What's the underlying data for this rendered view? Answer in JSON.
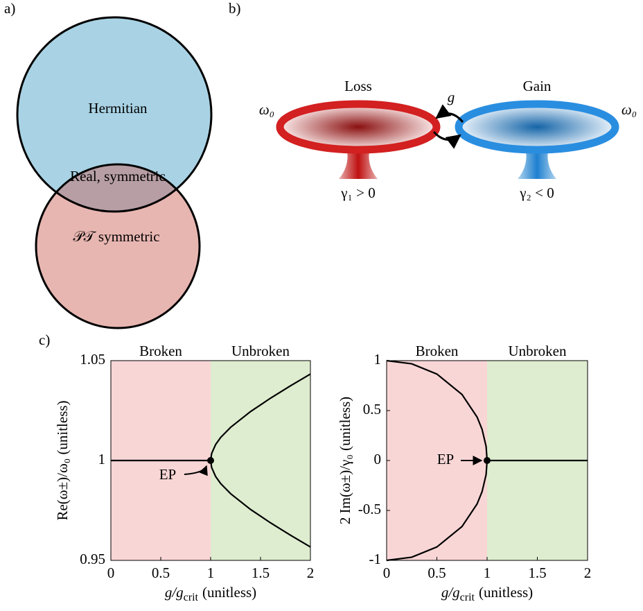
{
  "panel_a": {
    "label": "a)",
    "sets": [
      "Hermitian",
      "𝒫𝒯 symmetric"
    ],
    "overlap": "Real, symmetric"
  },
  "panel_b": {
    "label": "b)",
    "left": {
      "title": "Loss",
      "frequency": "ω₀",
      "rate": "γ₁ > 0"
    },
    "right": {
      "title": "Gain",
      "frequency": "ω₀",
      "rate": "γ₂ < 0"
    },
    "coupling": "g"
  },
  "panel_c": {
    "label": "c)"
  },
  "chart_data": [
    {
      "type": "line",
      "ylabel": "Re(ω±)/ω₀ (unitless)",
      "xlabel": {
        "main": "g/g",
        "sub": "crit",
        "unit": "(unitless)"
      },
      "x": [
        0,
        0.25,
        0.5,
        0.75,
        0.9,
        0.95,
        0.99,
        1,
        1.01,
        1.05,
        1.1,
        1.2,
        1.4,
        1.6,
        1.8,
        2
      ],
      "series": [
        {
          "color": "#000000",
          "values": [
            1,
            1,
            1,
            1,
            1,
            1,
            1,
            1,
            1.0035,
            1.008,
            1.0115,
            1.0166,
            1.0245,
            1.0312,
            1.0374,
            1.0433
          ]
        },
        {
          "color": "#000000",
          "values": [
            null,
            null,
            null,
            null,
            null,
            null,
            null,
            1,
            0.9965,
            0.992,
            0.9885,
            0.9834,
            0.9755,
            0.9688,
            0.9626,
            0.9567
          ]
        }
      ],
      "regions": [
        {
          "label": "Broken",
          "range": [
            0,
            1
          ],
          "color": "#f9d6d6"
        },
        {
          "label": "Unbroken",
          "range": [
            1,
            2
          ],
          "color": "#deedcf"
        }
      ],
      "annotations": [
        {
          "text": "EP",
          "x": 1,
          "y": 1
        }
      ],
      "xlim": [
        0,
        2
      ],
      "xticks": [
        0,
        0.5,
        1,
        1.5,
        2
      ],
      "ylim": [
        0.95,
        1.05
      ],
      "yticks": [
        0.95,
        1,
        1.05
      ]
    },
    {
      "type": "line",
      "ylabel": "2 Im(ω±)/γ₀ (unitless)",
      "xlabel": {
        "main": "g/g",
        "sub": "crit",
        "unit": "(unitless)"
      },
      "x": [
        0,
        0.25,
        0.5,
        0.75,
        0.9,
        0.95,
        0.99,
        1,
        1.01,
        1.05,
        1.1,
        1.2,
        1.4,
        1.6,
        1.8,
        2
      ],
      "series": [
        {
          "color": "#000000",
          "values": [
            1,
            0.9682,
            0.866,
            0.6614,
            0.4359,
            0.3122,
            0.1411,
            0,
            0,
            0,
            0,
            0,
            0,
            0,
            0,
            0
          ]
        },
        {
          "color": "#000000",
          "values": [
            -1,
            -0.9682,
            -0.866,
            -0.6614,
            -0.4359,
            -0.3122,
            -0.1411,
            0,
            null,
            null,
            null,
            null,
            null,
            null,
            null,
            null
          ]
        }
      ],
      "regions": [
        {
          "label": "Broken",
          "range": [
            0,
            1
          ],
          "color": "#f9d6d6"
        },
        {
          "label": "Unbroken",
          "range": [
            1,
            2
          ],
          "color": "#deedcf"
        }
      ],
      "annotations": [
        {
          "text": "EP",
          "x": 1,
          "y": 0
        }
      ],
      "xlim": [
        0,
        2
      ],
      "xticks": [
        0,
        0.5,
        1,
        1.5,
        2
      ],
      "ylim": [
        -1,
        1
      ],
      "yticks": [
        -1,
        -0.5,
        0,
        0.5,
        1
      ]
    }
  ]
}
